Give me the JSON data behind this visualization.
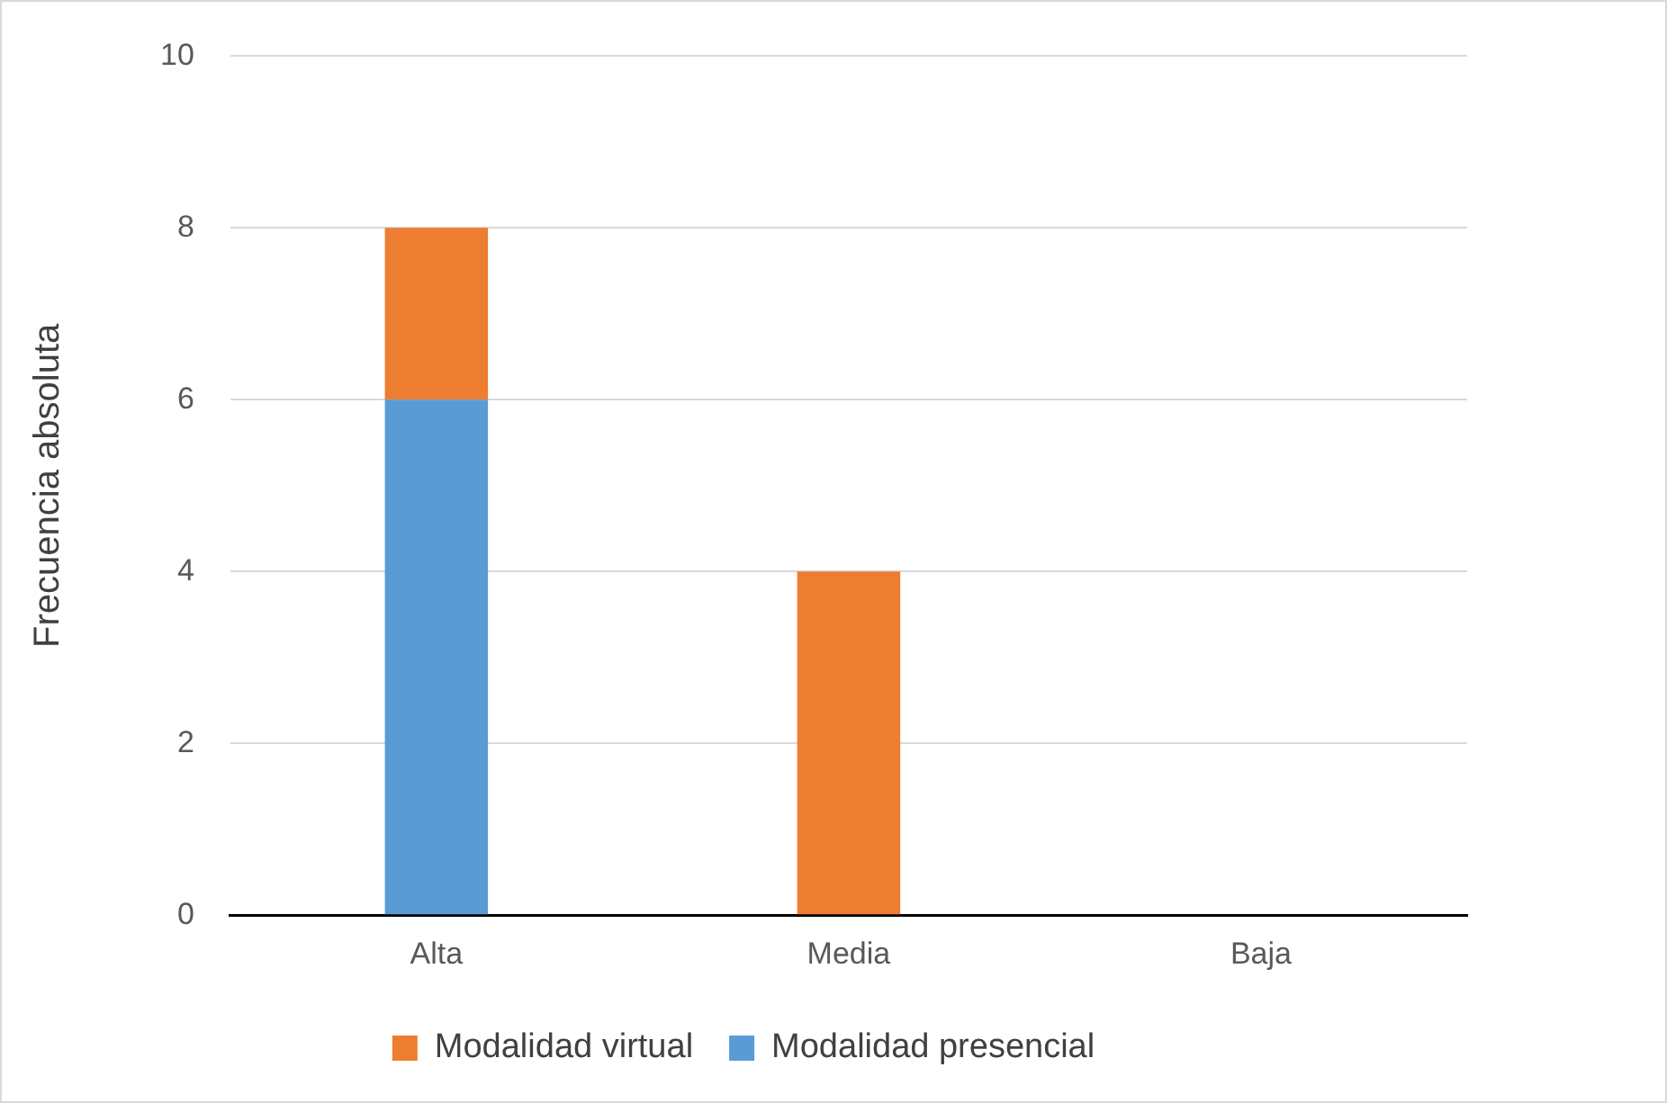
{
  "chart_data": {
    "type": "bar",
    "ylabel": "Frecuencia absoluta",
    "categories": [
      "Alta",
      "Media",
      "Baja"
    ],
    "stacked": true,
    "series": [
      {
        "name": "Modalidad presencial",
        "color": "#5b9bd5",
        "values": [
          6,
          0,
          0
        ]
      },
      {
        "name": "Modalidad virtual",
        "color": "#ed7d31",
        "values": [
          2,
          4,
          0
        ]
      }
    ],
    "ylim": [
      0,
      10
    ],
    "yticks": [
      0,
      2,
      4,
      6,
      8,
      10
    ],
    "grid": "y",
    "legend": "bottom"
  }
}
